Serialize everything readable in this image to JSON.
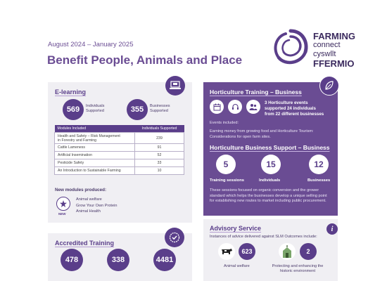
{
  "header": {
    "date_range": "August 2024 – January 2025",
    "title": "Benefit People, Animals and Place"
  },
  "brand": {
    "line1": "FARMING",
    "line2": "connect",
    "line3": "cyswllt",
    "line4": "FFERMIO"
  },
  "elearning": {
    "title": "E-learning",
    "individuals_value": "569",
    "individuals_label1": "Individuals",
    "individuals_label2": "Supported",
    "businesses_value": "355",
    "businesses_label1": "Businesses",
    "businesses_label2": "Supported",
    "table": {
      "col1": "Modules Included",
      "col2": "Individuals Supported",
      "rows": [
        {
          "module_line1": "Health and Safety – Risk Management",
          "module_line2": "in Forestry and Farming",
          "value": "239"
        },
        {
          "module_line1": "Cattle Lameness",
          "module_line2": "",
          "value": "91"
        },
        {
          "module_line1": "Artificial Insemination",
          "module_line2": "",
          "value": "52"
        },
        {
          "module_line1": "Pesticide Safety",
          "module_line2": "",
          "value": "33"
        },
        {
          "module_line1": "An Introduction to Sustainable Farming",
          "module_line2": "",
          "value": "10"
        }
      ]
    },
    "new_modules_label": "New modules produced:",
    "new_badge": "NEW",
    "new_modules": [
      "Animal welfare",
      "Grow Your Own Protein",
      "Animal Health"
    ]
  },
  "accredited": {
    "title": "Accredited Training",
    "values": [
      "478",
      "338",
      "4481"
    ]
  },
  "horticulture_training": {
    "title": "Horticulture Training – Business",
    "summary_line1": "3 Horticulture events",
    "summary_line2": "supported 24 individuals",
    "summary_line3": "from 22 different businesses",
    "events_label": "Events included:",
    "events_line1": "Earning money from growing food and Horticulture Tourism:",
    "events_line2": "Considerations for open farm sites."
  },
  "horticulture_support": {
    "title": "Horticulture Business Support – Business",
    "stats": [
      {
        "value": "5",
        "label": "Training sessions"
      },
      {
        "value": "15",
        "label": "Individuals"
      },
      {
        "value": "12",
        "label": "Businesses"
      }
    ],
    "desc_line1": "These sessions focused on organic conversion and the grower",
    "desc_line2": "standard which helps the businesses develop a unique selling point",
    "desc_line3": "for establishing new routes to market including public procurement."
  },
  "advisory": {
    "title": "Advisory Service",
    "subtitle": "Instances of advice delivered against SLM Outcomes include:",
    "info_glyph": "i",
    "items": [
      {
        "value": "623",
        "label_line1": "Animal welfare",
        "label_line2": ""
      },
      {
        "value": "2",
        "label_line1": "Protecting and enhancing the",
        "label_line2": "historic environment"
      }
    ]
  },
  "colors": {
    "primary": "#6a4c93",
    "dark": "#5a3e8a",
    "panel": "#f0eff3"
  }
}
